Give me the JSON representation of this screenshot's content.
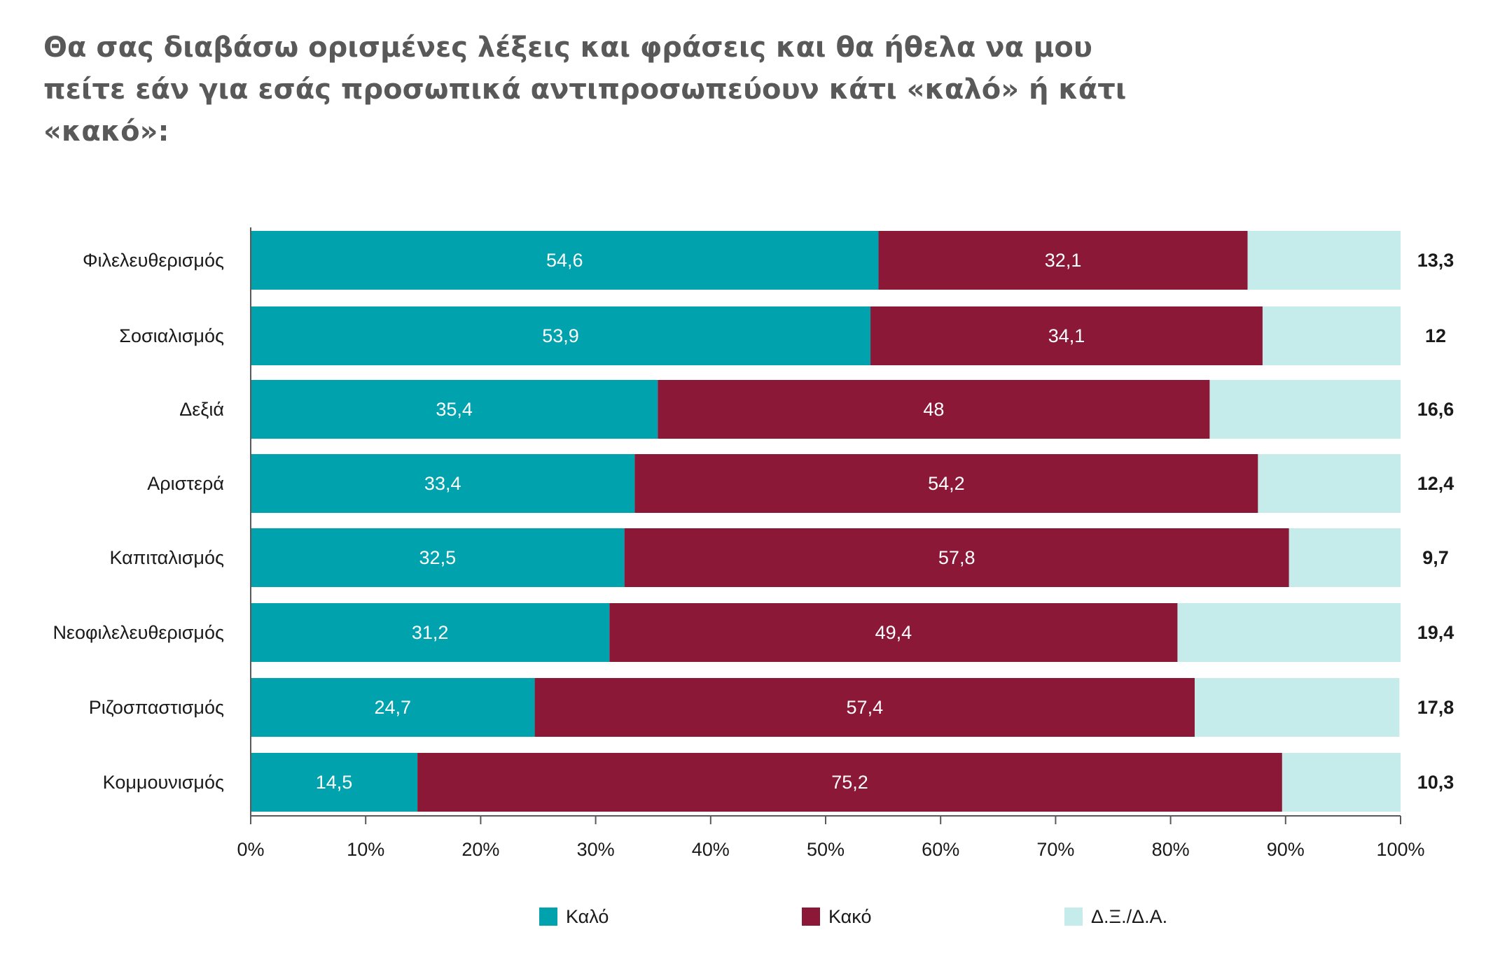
{
  "title": "Θα σας διαβάσω ορισμένες λέξεις και φράσεις και θα ήθελα να μου πείτε εάν για εσάς προσωπικά αντιπροσωπεύουν κάτι «καλό» ή κάτι «κακό»:",
  "chart_data": {
    "type": "bar",
    "orientation": "horizontal",
    "stacked": true,
    "percent_stacked": true,
    "title": "Θα σας διαβάσω ορισμένες λέξεις και φράσεις και θα ήθελα να μου πείτε εάν για εσάς προσωπικά αντιπροσωπεύουν κάτι «καλό» ή κάτι «κακό»:",
    "categories": [
      "Φιλελευθερισμός",
      "Σοσιαλισμός",
      "Δεξιά",
      "Αριστερά",
      "Καπιταλισμός",
      "Νεοφιλελευθερισμός",
      "Ριζοσπαστισμός",
      "Κομμουνισμός"
    ],
    "series": [
      {
        "name": "Καλό",
        "color": "#00a2ad",
        "values": [
          54.6,
          53.9,
          35.4,
          33.4,
          32.5,
          31.2,
          24.7,
          14.5
        ],
        "labels": [
          "54,6",
          "53,9",
          "35,4",
          "33,4",
          "32,5",
          "31,2",
          "24,7",
          "14,5"
        ]
      },
      {
        "name": "Κακό",
        "color": "#8c1838",
        "values": [
          32.1,
          34.1,
          48,
          54.2,
          57.8,
          49.4,
          57.4,
          75.2
        ],
        "labels": [
          "32,1",
          "34,1",
          "48",
          "54,2",
          "57,8",
          "49,4",
          "57,4",
          "75,2"
        ]
      },
      {
        "name": "Δ.Ξ./Δ.Α.",
        "color": "#c5ebea",
        "values": [
          13.3,
          12,
          16.6,
          12.4,
          9.7,
          19.4,
          17.8,
          10.3
        ],
        "labels": [
          "13,3",
          "12",
          "16,6",
          "12,4",
          "9,7",
          "19,4",
          "17,8",
          "10,3"
        ]
      }
    ],
    "x_ticks": [
      "0%",
      "10%",
      "20%",
      "30%",
      "40%",
      "50%",
      "60%",
      "70%",
      "80%",
      "90%",
      "100%"
    ],
    "xlim": [
      0,
      100
    ],
    "legend_position": "bottom",
    "grid": false
  }
}
